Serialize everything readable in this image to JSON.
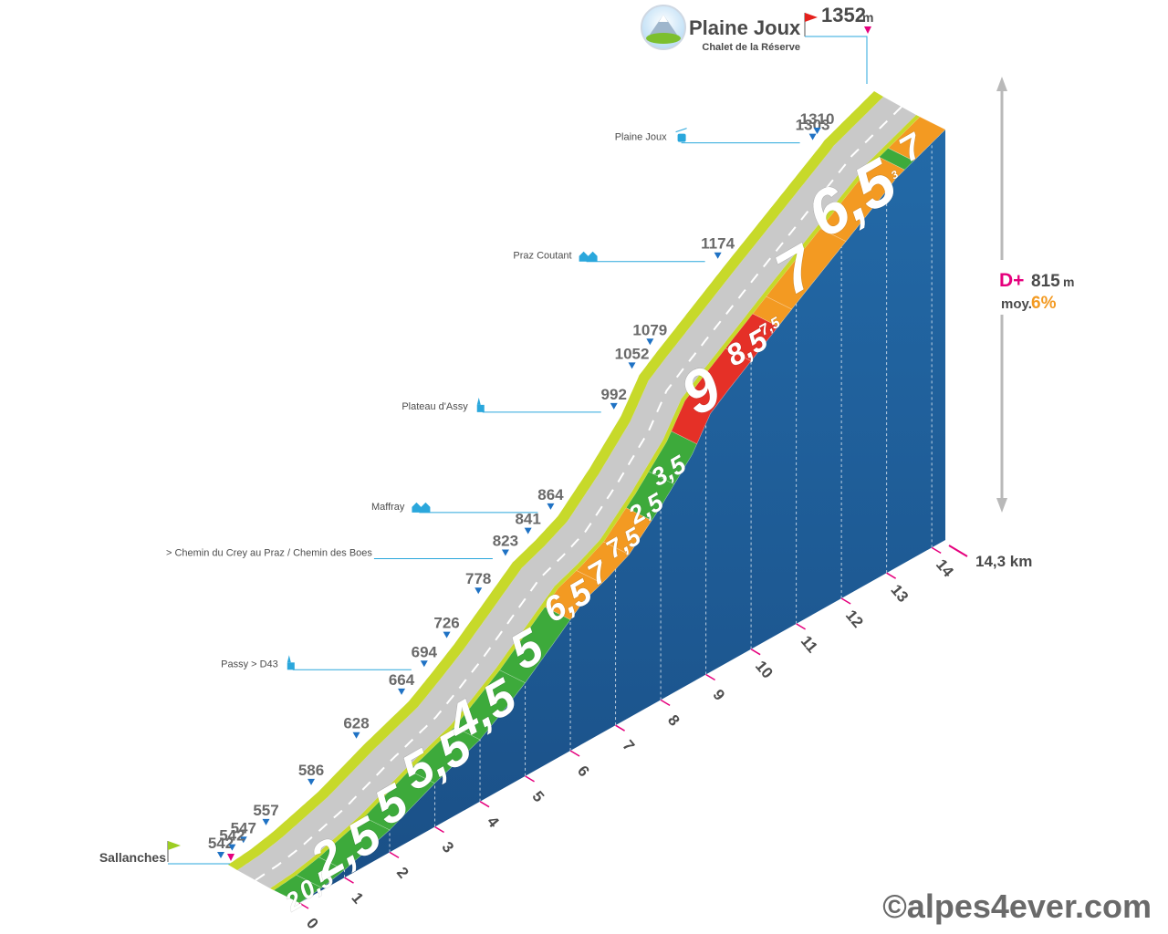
{
  "summit": {
    "name": "Plaine Joux",
    "subtitle": "Chalet de la Réserve",
    "altitude": "1352",
    "altitude_unit": "m",
    "icon": "mountain-badge-icon"
  },
  "start": {
    "name": "Sallanches"
  },
  "totals": {
    "gain_label": "D+",
    "gain_value": "815",
    "gain_unit": "m",
    "avg_label": "moy.",
    "avg_value": "6%",
    "distance": "14,3 km"
  },
  "credit": "©alpes4ever.com",
  "colors": {
    "easy": "#3daa3b",
    "moderate": "#f39a22",
    "hard": "#e53027",
    "side": "#1f5b96",
    "road": "#c9c9c9",
    "shoulder": "#c7d92a",
    "label": "#6a6a6a",
    "marker": "#1f72c4",
    "flag_start": "#9ccd22",
    "flag_end": "#e5007d"
  },
  "chart_data": {
    "type": "area",
    "title": "Plaine Joux",
    "x_unit": "km",
    "y_unit": "m",
    "x_ticks": [
      "0",
      "1",
      "2",
      "3",
      "4",
      "5",
      "6",
      "7",
      "8",
      "9",
      "10",
      "11",
      "12",
      "13",
      "14"
    ],
    "profile": [
      {
        "x": 0.0,
        "y": 542
      },
      {
        "x": 0.5,
        "y": 547
      },
      {
        "x": 1.0,
        "y": 557
      },
      {
        "x": 2.0,
        "y": 586
      },
      {
        "x": 3.0,
        "y": 628
      },
      {
        "x": 4.0,
        "y": 664
      },
      {
        "x": 4.5,
        "y": 694
      },
      {
        "x": 5.0,
        "y": 726
      },
      {
        "x": 5.7,
        "y": 778
      },
      {
        "x": 6.3,
        "y": 823
      },
      {
        "x": 6.8,
        "y": 841
      },
      {
        "x": 7.3,
        "y": 864
      },
      {
        "x": 8.0,
        "y": 923
      },
      {
        "x": 8.7,
        "y": 992
      },
      {
        "x": 9.1,
        "y": 1052
      },
      {
        "x": 9.5,
        "y": 1079
      },
      {
        "x": 11.0,
        "y": 1174
      },
      {
        "x": 13.1,
        "y": 1303
      },
      {
        "x": 13.2,
        "y": 1310
      },
      {
        "x": 14.3,
        "y": 1352
      }
    ],
    "segments": [
      {
        "grade": "2",
        "km": [
          0,
          0.5
        ]
      },
      {
        "grade": "0,5",
        "km": [
          0.5,
          1
        ]
      },
      {
        "grade": "2,5",
        "km": [
          1,
          2
        ]
      },
      {
        "grade": "5",
        "km": [
          2,
          3
        ]
      },
      {
        "grade": "5,5",
        "km": [
          3,
          4
        ]
      },
      {
        "grade": "4,5",
        "km": [
          4,
          5
        ]
      },
      {
        "grade": "5",
        "km": [
          5,
          6
        ]
      },
      {
        "grade": "6,5",
        "km": [
          6,
          6.7
        ]
      },
      {
        "grade": "7",
        "km": [
          6.7,
          7.3
        ]
      },
      {
        "grade": "7,5",
        "km": [
          7.3,
          7.8
        ]
      },
      {
        "grade": "2,5",
        "km": [
          7.8,
          8.3
        ]
      },
      {
        "grade": "3,5",
        "km": [
          8.3,
          8.8
        ]
      },
      {
        "grade": "9",
        "km": [
          8.8,
          10.0
        ]
      },
      {
        "grade": "8,5",
        "km": [
          10.0,
          10.6
        ]
      },
      {
        "grade": "7,5",
        "km": [
          10.6,
          10.9
        ]
      },
      {
        "grade": "7",
        "km": [
          10.9,
          12.1
        ]
      },
      {
        "grade": "6,5",
        "km": [
          12.1,
          13.4
        ]
      },
      {
        "grade": "3",
        "km": [
          13.4,
          13.6
        ]
      },
      {
        "grade": "7",
        "km": [
          13.6,
          14.3
        ]
      }
    ],
    "altitude_labels": [
      "542",
      "547",
      "542",
      "557",
      "586",
      "628",
      "664",
      "694",
      "726",
      "778",
      "823",
      "841",
      "864",
      "992",
      "1052",
      "1079",
      "1174",
      "1303",
      "1310"
    ],
    "places": [
      {
        "name": "Passy > D43",
        "altitude": "694",
        "icon": "church-icon"
      },
      {
        "name": "> Chemin du Crey au Praz / Chemin des Boes",
        "altitude": "823",
        "icon": ""
      },
      {
        "name": "Maffray",
        "altitude": "864",
        "icon": "houses-icon"
      },
      {
        "name": "Plateau d'Assy",
        "altitude": "992",
        "icon": "church-icon"
      },
      {
        "name": "Praz Coutant",
        "altitude": "1174",
        "icon": "houses-icon"
      },
      {
        "name": "Plaine Joux",
        "altitude": "1303",
        "icon": "cable-car-icon"
      }
    ]
  }
}
